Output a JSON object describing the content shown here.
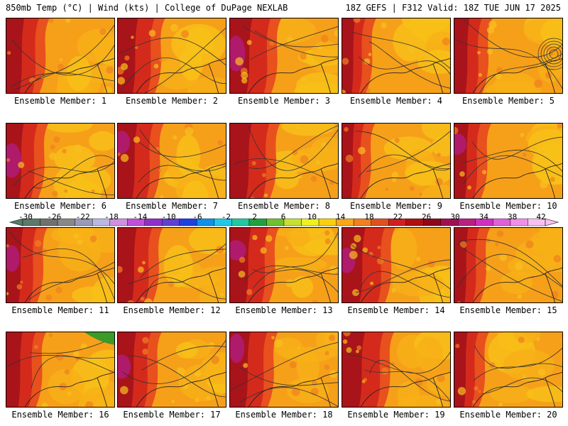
{
  "header": {
    "left": "850mb Temp (°C) | Wind (kts) | College of DuPage NEXLAB",
    "right": "18Z GEFS | F312 Valid: 18Z TUE JUN 17 2025"
  },
  "members": [
    {
      "label": "Ensemble Member: 1"
    },
    {
      "label": "Ensemble Member: 2"
    },
    {
      "label": "Ensemble Member: 3"
    },
    {
      "label": "Ensemble Member: 4"
    },
    {
      "label": "Ensemble Member: 5"
    },
    {
      "label": "Ensemble Member: 6"
    },
    {
      "label": "Ensemble Member: 7"
    },
    {
      "label": "Ensemble Member: 8"
    },
    {
      "label": "Ensemble Member: 9"
    },
    {
      "label": "Ensemble Member: 10"
    },
    {
      "label": "Ensemble Member: 11"
    },
    {
      "label": "Ensemble Member: 12"
    },
    {
      "label": "Ensemble Member: 13"
    },
    {
      "label": "Ensemble Member: 14"
    },
    {
      "label": "Ensemble Member: 15"
    },
    {
      "label": "Ensemble Member: 16"
    },
    {
      "label": "Ensemble Member: 17"
    },
    {
      "label": "Ensemble Member: 18"
    },
    {
      "label": "Ensemble Member: 19"
    },
    {
      "label": "Ensemble Member: 20"
    }
  ],
  "colorbar": {
    "labels": [
      "-30",
      "-26",
      "-22",
      "-18",
      "-14",
      "-10",
      "-6",
      "-2",
      "2",
      "6",
      "10",
      "14",
      "18",
      "22",
      "26",
      "30",
      "34",
      "38",
      "42"
    ],
    "colors": [
      "#5a7a6a",
      "#707070",
      "#888888",
      "#9a9ab8",
      "#b8b8e0",
      "#d090e0",
      "#c050d8",
      "#9030c8",
      "#6040d0",
      "#2040e0",
      "#1090e8",
      "#20c8e8",
      "#20c8a0",
      "#20a040",
      "#70c030",
      "#c8e030",
      "#f0f020",
      "#f8d010",
      "#f8a818",
      "#f08020",
      "#e05020",
      "#d02020",
      "#b01010",
      "#900818",
      "#a01050",
      "#b82080",
      "#d030c0",
      "#e060d8",
      "#f090e8",
      "#f8c0f0"
    ]
  }
}
